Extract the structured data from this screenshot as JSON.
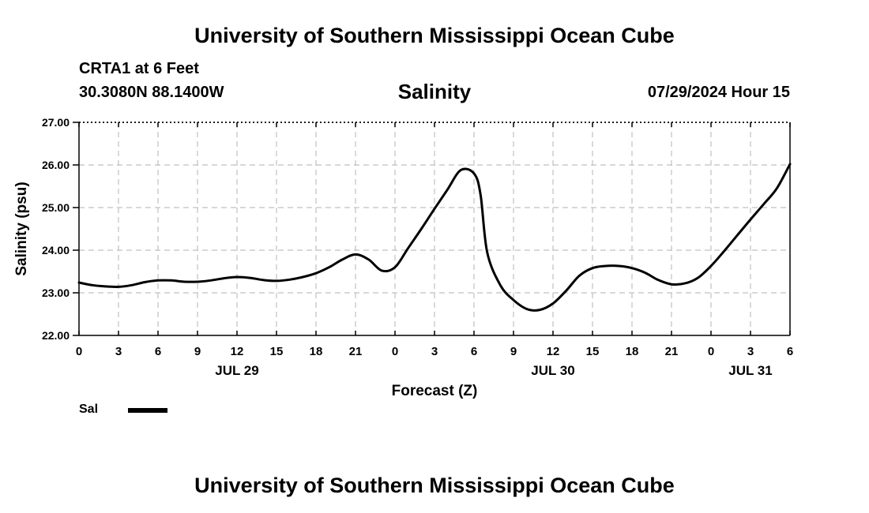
{
  "header": {
    "title": "University of Southern Mississippi Ocean Cube",
    "station": "CRTA1 at 6 Feet",
    "coordinates": "30.3080N  88.1400W",
    "valid_time": "07/29/2024 Hour 15"
  },
  "footer": {
    "title": "University of Southern Mississippi Ocean Cube"
  },
  "legend": {
    "label": "Sal"
  },
  "colors": {
    "line": "#000000",
    "grid": "#c0c0c0",
    "background": "#ffffff"
  },
  "chart_data": {
    "type": "line",
    "title": "Salinity",
    "xlabel": "Forecast (Z)",
    "ylabel": "Salinity (psu)",
    "ylim": [
      22.0,
      27.0
    ],
    "xlim": [
      0,
      54
    ],
    "grid": true,
    "legend_position": "bottom-left",
    "y_ticks": [
      "22.00",
      "23.00",
      "24.00",
      "25.00",
      "26.00",
      "27.00"
    ],
    "x_tick_labels": [
      "0",
      "3",
      "6",
      "9",
      "12",
      "15",
      "18",
      "21",
      "0",
      "3",
      "6",
      "9",
      "12",
      "15",
      "18",
      "21",
      "0",
      "3",
      "6"
    ],
    "date_labels": [
      {
        "label": "JUL 29",
        "hour": 12
      },
      {
        "label": "JUL 30",
        "hour": 36
      },
      {
        "label": "JUL 31",
        "hour": 51
      }
    ],
    "series": [
      {
        "name": "Sal",
        "x": [
          0,
          1,
          2,
          3,
          4,
          5,
          6,
          7,
          8,
          9,
          10,
          11,
          12,
          13,
          14,
          15,
          16,
          17,
          18,
          19,
          20,
          21,
          22,
          23,
          24,
          25,
          26,
          27,
          28,
          29,
          30,
          30.5,
          31,
          32,
          33,
          34,
          35,
          36,
          37,
          38,
          39,
          40,
          41,
          42,
          43,
          44,
          45,
          46,
          47,
          48,
          49,
          50,
          51,
          52,
          53,
          54
        ],
        "values": [
          23.24,
          23.18,
          23.15,
          23.14,
          23.18,
          23.25,
          23.29,
          23.29,
          23.26,
          23.26,
          23.29,
          23.34,
          23.37,
          23.35,
          23.3,
          23.28,
          23.31,
          23.37,
          23.46,
          23.6,
          23.78,
          23.9,
          23.78,
          23.52,
          23.6,
          24.05,
          24.5,
          24.97,
          25.43,
          25.88,
          25.8,
          25.3,
          23.95,
          23.18,
          22.83,
          22.62,
          22.6,
          22.75,
          23.05,
          23.4,
          23.58,
          23.63,
          23.63,
          23.58,
          23.47,
          23.3,
          23.2,
          23.22,
          23.35,
          23.63,
          23.98,
          24.35,
          24.72,
          25.08,
          25.45,
          26.02
        ]
      }
    ]
  }
}
